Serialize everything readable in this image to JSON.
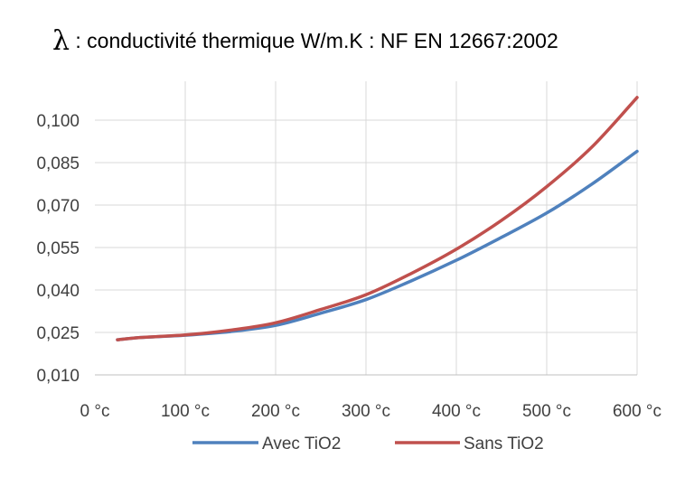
{
  "title": {
    "symbol": "λ",
    "text": " : conductivité thermique W/m.K   : NF EN 12667:2002"
  },
  "chart_data": {
    "type": "line",
    "title": "λ : conductivité thermique W/m.K   : NF EN 12667:2002",
    "xlabel": "",
    "ylabel": "",
    "x_unit": "°c",
    "xlim": [
      0,
      600
    ],
    "ylim": [
      0.01,
      0.105
    ],
    "x_ticks": [
      0,
      100,
      200,
      300,
      400,
      500,
      600
    ],
    "x_tick_labels": [
      "0 °c",
      "100 °c",
      "200 °c",
      "300 °c",
      "400 °c",
      "500 °c",
      "600 °c"
    ],
    "y_ticks": [
      0.01,
      0.025,
      0.04,
      0.055,
      0.07,
      0.085,
      0.1
    ],
    "y_tick_labels": [
      "0,010",
      "0,025",
      "0,040",
      "0,055",
      "0,070",
      "0,085",
      "0,100"
    ],
    "grid": true,
    "legend_position": "bottom",
    "series": [
      {
        "name": "Avec TiO2",
        "color": "#4F81BD",
        "x": [
          25,
          50,
          100,
          150,
          200,
          250,
          300,
          350,
          400,
          450,
          500,
          550,
          600
        ],
        "values": [
          0.0224,
          0.0232,
          0.024,
          0.0253,
          0.0275,
          0.0318,
          0.0366,
          0.0432,
          0.0505,
          0.0586,
          0.0672,
          0.0774,
          0.089
        ]
      },
      {
        "name": "Sans TiO2",
        "color": "#C0504D",
        "x": [
          25,
          50,
          100,
          150,
          200,
          250,
          300,
          350,
          400,
          450,
          500,
          550,
          600
        ],
        "values": [
          0.0224,
          0.0232,
          0.0241,
          0.0258,
          0.0284,
          0.0331,
          0.0383,
          0.0458,
          0.0544,
          0.0646,
          0.0765,
          0.0905,
          0.108
        ]
      }
    ]
  }
}
